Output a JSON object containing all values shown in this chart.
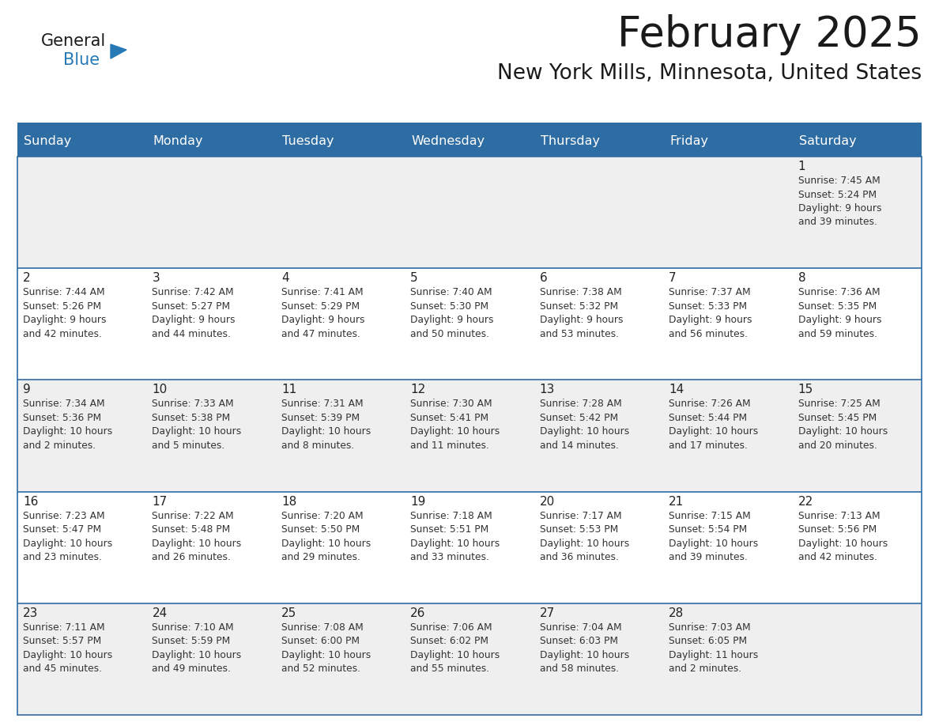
{
  "title": "February 2025",
  "subtitle": "New York Mills, Minnesota, United States",
  "days_of_week": [
    "Sunday",
    "Monday",
    "Tuesday",
    "Wednesday",
    "Thursday",
    "Friday",
    "Saturday"
  ],
  "header_bg": "#2E6DA4",
  "header_text": "#FFFFFF",
  "cell_bg_odd": "#EFEFEF",
  "cell_bg_even": "#FFFFFF",
  "day_number_color": "#222222",
  "info_text_color": "#333333",
  "border_color": "#2E6DA4",
  "title_color": "#1a1a1a",
  "subtitle_color": "#1a1a1a",
  "logo_general_color": "#1a1a1a",
  "logo_blue_color": "#2779B5",
  "calendar": [
    [
      {
        "day": null,
        "info": ""
      },
      {
        "day": null,
        "info": ""
      },
      {
        "day": null,
        "info": ""
      },
      {
        "day": null,
        "info": ""
      },
      {
        "day": null,
        "info": ""
      },
      {
        "day": null,
        "info": ""
      },
      {
        "day": 1,
        "info": "Sunrise: 7:45 AM\nSunset: 5:24 PM\nDaylight: 9 hours\nand 39 minutes."
      }
    ],
    [
      {
        "day": 2,
        "info": "Sunrise: 7:44 AM\nSunset: 5:26 PM\nDaylight: 9 hours\nand 42 minutes."
      },
      {
        "day": 3,
        "info": "Sunrise: 7:42 AM\nSunset: 5:27 PM\nDaylight: 9 hours\nand 44 minutes."
      },
      {
        "day": 4,
        "info": "Sunrise: 7:41 AM\nSunset: 5:29 PM\nDaylight: 9 hours\nand 47 minutes."
      },
      {
        "day": 5,
        "info": "Sunrise: 7:40 AM\nSunset: 5:30 PM\nDaylight: 9 hours\nand 50 minutes."
      },
      {
        "day": 6,
        "info": "Sunrise: 7:38 AM\nSunset: 5:32 PM\nDaylight: 9 hours\nand 53 minutes."
      },
      {
        "day": 7,
        "info": "Sunrise: 7:37 AM\nSunset: 5:33 PM\nDaylight: 9 hours\nand 56 minutes."
      },
      {
        "day": 8,
        "info": "Sunrise: 7:36 AM\nSunset: 5:35 PM\nDaylight: 9 hours\nand 59 minutes."
      }
    ],
    [
      {
        "day": 9,
        "info": "Sunrise: 7:34 AM\nSunset: 5:36 PM\nDaylight: 10 hours\nand 2 minutes."
      },
      {
        "day": 10,
        "info": "Sunrise: 7:33 AM\nSunset: 5:38 PM\nDaylight: 10 hours\nand 5 minutes."
      },
      {
        "day": 11,
        "info": "Sunrise: 7:31 AM\nSunset: 5:39 PM\nDaylight: 10 hours\nand 8 minutes."
      },
      {
        "day": 12,
        "info": "Sunrise: 7:30 AM\nSunset: 5:41 PM\nDaylight: 10 hours\nand 11 minutes."
      },
      {
        "day": 13,
        "info": "Sunrise: 7:28 AM\nSunset: 5:42 PM\nDaylight: 10 hours\nand 14 minutes."
      },
      {
        "day": 14,
        "info": "Sunrise: 7:26 AM\nSunset: 5:44 PM\nDaylight: 10 hours\nand 17 minutes."
      },
      {
        "day": 15,
        "info": "Sunrise: 7:25 AM\nSunset: 5:45 PM\nDaylight: 10 hours\nand 20 minutes."
      }
    ],
    [
      {
        "day": 16,
        "info": "Sunrise: 7:23 AM\nSunset: 5:47 PM\nDaylight: 10 hours\nand 23 minutes."
      },
      {
        "day": 17,
        "info": "Sunrise: 7:22 AM\nSunset: 5:48 PM\nDaylight: 10 hours\nand 26 minutes."
      },
      {
        "day": 18,
        "info": "Sunrise: 7:20 AM\nSunset: 5:50 PM\nDaylight: 10 hours\nand 29 minutes."
      },
      {
        "day": 19,
        "info": "Sunrise: 7:18 AM\nSunset: 5:51 PM\nDaylight: 10 hours\nand 33 minutes."
      },
      {
        "day": 20,
        "info": "Sunrise: 7:17 AM\nSunset: 5:53 PM\nDaylight: 10 hours\nand 36 minutes."
      },
      {
        "day": 21,
        "info": "Sunrise: 7:15 AM\nSunset: 5:54 PM\nDaylight: 10 hours\nand 39 minutes."
      },
      {
        "day": 22,
        "info": "Sunrise: 7:13 AM\nSunset: 5:56 PM\nDaylight: 10 hours\nand 42 minutes."
      }
    ],
    [
      {
        "day": 23,
        "info": "Sunrise: 7:11 AM\nSunset: 5:57 PM\nDaylight: 10 hours\nand 45 minutes."
      },
      {
        "day": 24,
        "info": "Sunrise: 7:10 AM\nSunset: 5:59 PM\nDaylight: 10 hours\nand 49 minutes."
      },
      {
        "day": 25,
        "info": "Sunrise: 7:08 AM\nSunset: 6:00 PM\nDaylight: 10 hours\nand 52 minutes."
      },
      {
        "day": 26,
        "info": "Sunrise: 7:06 AM\nSunset: 6:02 PM\nDaylight: 10 hours\nand 55 minutes."
      },
      {
        "day": 27,
        "info": "Sunrise: 7:04 AM\nSunset: 6:03 PM\nDaylight: 10 hours\nand 58 minutes."
      },
      {
        "day": 28,
        "info": "Sunrise: 7:03 AM\nSunset: 6:05 PM\nDaylight: 11 hours\nand 2 minutes."
      },
      {
        "day": null,
        "info": ""
      }
    ]
  ]
}
